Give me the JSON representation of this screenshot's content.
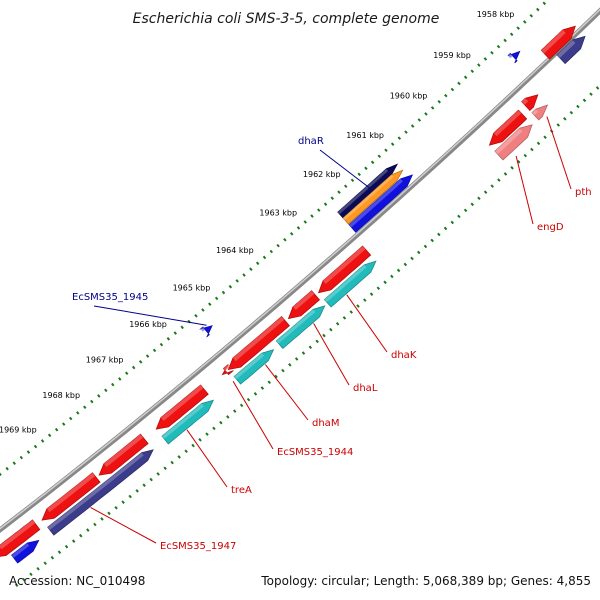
{
  "title": "Escherichia coli SMS-3-5, complete genome",
  "ticks": [
    {
      "label": "1958 kbp"
    },
    {
      "label": "1959 kbp"
    },
    {
      "label": "1960 kbp"
    },
    {
      "label": "1961 kbp"
    },
    {
      "label": "1962 kbp"
    },
    {
      "label": "1963 kbp"
    },
    {
      "label": "1964 kbp"
    },
    {
      "label": "1965 kbp"
    },
    {
      "label": "1966 kbp"
    },
    {
      "label": "1967 kbp"
    },
    {
      "label": "1968 kbp"
    },
    {
      "label": "1969 kbp"
    }
  ],
  "labels": [
    {
      "text": "dhaR",
      "color": "#00008b"
    },
    {
      "text": "EcSMS35_1945",
      "color": "#00008b"
    },
    {
      "text": "pth",
      "color": "#cc0000"
    },
    {
      "text": "engD",
      "color": "#cc0000"
    },
    {
      "text": "dhaK",
      "color": "#cc0000"
    },
    {
      "text": "dhaL",
      "color": "#cc0000"
    },
    {
      "text": "dhaM",
      "color": "#cc0000"
    },
    {
      "text": "EcSMS35_1944",
      "color": "#cc0000"
    },
    {
      "text": "treA",
      "color": "#cc0000"
    },
    {
      "text": "EcSMS35_1947",
      "color": "#cc0000"
    }
  ],
  "colors": {
    "reverse_gene": "#ee1111",
    "light_gene": "#f08080",
    "forward_gene": "#1111dd",
    "cyan_gene": "#22bbbb",
    "navy_gene": "#3c3c8c",
    "orange_gene": "#ff9922",
    "dark_navy": "#0a0a55",
    "backbone": "#888888",
    "tick_green": "#1a7a1a"
  },
  "footer": {
    "accession": "Accession: NC_010498",
    "topology": "Topology: circular; Length: 5,068,389 bp; Genes: 4,855"
  }
}
